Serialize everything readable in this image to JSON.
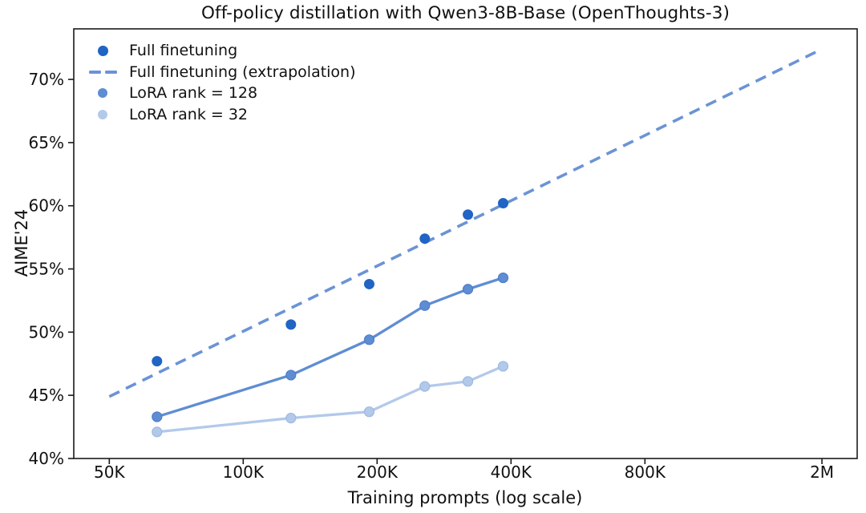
{
  "chart_data": {
    "type": "line",
    "title": "Off-policy distillation with Qwen3-8B-Base (OpenThoughts-3)",
    "xlabel": "Training prompts (log scale)",
    "ylabel": "AIME'24",
    "x_scale": "log",
    "grid": false,
    "xlim": [
      41600,
      2400000
    ],
    "ylim": [
      40,
      74
    ],
    "x_ticks": [
      {
        "value": 50000,
        "label": "50K"
      },
      {
        "value": 100000,
        "label": "100K"
      },
      {
        "value": 200000,
        "label": "200K"
      },
      {
        "value": 400000,
        "label": "400K"
      },
      {
        "value": 800000,
        "label": "800K"
      },
      {
        "value": 2000000,
        "label": "2M"
      }
    ],
    "y_ticks": [
      {
        "value": 40,
        "label": "40%"
      },
      {
        "value": 45,
        "label": "45%"
      },
      {
        "value": 50,
        "label": "50%"
      },
      {
        "value": 55,
        "label": "55%"
      },
      {
        "value": 60,
        "label": "60%"
      },
      {
        "value": 65,
        "label": "65%"
      },
      {
        "value": 70,
        "label": "70%"
      }
    ],
    "x": [
      64000,
      128000,
      192000,
      256000,
      320000,
      384000
    ],
    "series": [
      {
        "name": "Full finetuning",
        "style": "scatter",
        "color": "#2064c4",
        "marker_radius": 6.5,
        "values": [
          47.7,
          50.6,
          53.8,
          57.4,
          59.3,
          60.2
        ]
      },
      {
        "name": "Full finetuning (extrapolation)",
        "style": "dashed-line",
        "color": "#6b93d6",
        "x": [
          50000,
          2000000
        ],
        "values": [
          44.9,
          72.4
        ]
      },
      {
        "name": "LoRA rank = 128",
        "style": "line-marker",
        "color": "#5f8dd3",
        "edge_color": "#4d7dc9",
        "marker_radius": 6,
        "values": [
          43.3,
          46.6,
          49.4,
          52.1,
          53.4,
          54.3
        ]
      },
      {
        "name": "LoRA rank = 32",
        "style": "line-marker",
        "color": "#b3c9ea",
        "edge_color": "#9cb8e2",
        "marker_radius": 6,
        "values": [
          42.1,
          43.2,
          43.7,
          45.7,
          46.1,
          47.3
        ]
      }
    ],
    "legend": {
      "position": "upper left",
      "frame": false
    },
    "colors": {
      "axis": "#1a1a1a",
      "text": "#111111",
      "background": "#ffffff"
    }
  }
}
